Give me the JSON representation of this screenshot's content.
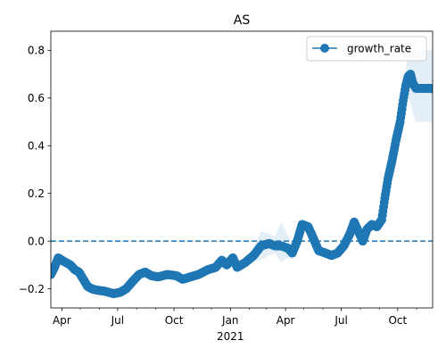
{
  "chart_data": {
    "type": "line",
    "title": "AS",
    "xlabel": "",
    "ylabel": "",
    "x_axis": {
      "range": [
        "2020-03-14",
        "2021-11-27"
      ],
      "ticks": [
        {
          "date": "2020-04-01",
          "label": "Apr"
        },
        {
          "date": "2020-07-01",
          "label": "Jul"
        },
        {
          "date": "2020-10-01",
          "label": "Oct"
        },
        {
          "date": "2021-01-01",
          "label": "Jan"
        },
        {
          "date": "2021-04-01",
          "label": "Apr"
        },
        {
          "date": "2021-07-01",
          "label": "Jul"
        },
        {
          "date": "2021-10-01",
          "label": "Oct"
        }
      ],
      "year_label": {
        "date": "2021-01-01",
        "label": "2021"
      }
    },
    "ylim": [
      -0.28,
      0.88
    ],
    "yticks": [
      -0.2,
      0.0,
      0.2,
      0.4,
      0.6,
      0.8
    ],
    "ytick_labels": [
      "−0.2",
      "0.0",
      "0.2",
      "0.4",
      "0.6",
      "0.8"
    ],
    "grid": false,
    "legend": {
      "placement": "top-right"
    },
    "reference_line": {
      "y": 0.0,
      "style": "dashed",
      "color": "#1f77b4"
    },
    "colors": {
      "series": "#1f77b4",
      "band": "#1f77b4"
    },
    "series": [
      {
        "name": "growth_rate",
        "marker": "circle",
        "points": [
          {
            "x": "2020-03-14",
            "y": -0.14,
            "lo": -0.15,
            "hi": -0.13
          },
          {
            "x": "2020-03-20",
            "y": -0.11,
            "lo": -0.12,
            "hi": -0.1
          },
          {
            "x": "2020-03-26",
            "y": -0.07,
            "lo": -0.08,
            "hi": -0.06
          },
          {
            "x": "2020-04-01",
            "y": -0.08,
            "lo": -0.09,
            "hi": -0.07
          },
          {
            "x": "2020-04-08",
            "y": -0.09,
            "lo": -0.1,
            "hi": -0.08
          },
          {
            "x": "2020-04-15",
            "y": -0.1,
            "lo": -0.11,
            "hi": -0.09
          },
          {
            "x": "2020-04-22",
            "y": -0.12,
            "lo": -0.13,
            "hi": -0.11
          },
          {
            "x": "2020-04-29",
            "y": -0.13,
            "lo": -0.14,
            "hi": -0.12
          },
          {
            "x": "2020-05-06",
            "y": -0.16,
            "lo": -0.17,
            "hi": -0.15
          },
          {
            "x": "2020-05-13",
            "y": -0.19,
            "lo": -0.2,
            "hi": -0.18
          },
          {
            "x": "2020-05-20",
            "y": -0.2,
            "lo": -0.21,
            "hi": -0.19
          },
          {
            "x": "2020-05-27",
            "y": -0.205,
            "lo": -0.215,
            "hi": -0.195
          },
          {
            "x": "2020-06-10",
            "y": -0.21,
            "lo": -0.22,
            "hi": -0.2
          },
          {
            "x": "2020-06-24",
            "y": -0.22,
            "lo": -0.23,
            "hi": -0.21
          },
          {
            "x": "2020-07-05",
            "y": -0.215,
            "lo": -0.225,
            "hi": -0.205
          },
          {
            "x": "2020-07-15",
            "y": -0.2,
            "lo": -0.21,
            "hi": -0.19
          },
          {
            "x": "2020-07-25",
            "y": -0.17,
            "lo": -0.18,
            "hi": -0.16
          },
          {
            "x": "2020-08-05",
            "y": -0.14,
            "lo": -0.15,
            "hi": -0.13
          },
          {
            "x": "2020-08-15",
            "y": -0.13,
            "lo": -0.14,
            "hi": -0.12
          },
          {
            "x": "2020-08-25",
            "y": -0.145,
            "lo": -0.155,
            "hi": -0.135
          },
          {
            "x": "2020-09-05",
            "y": -0.15,
            "lo": -0.16,
            "hi": -0.14
          },
          {
            "x": "2020-09-20",
            "y": -0.14,
            "lo": -0.15,
            "hi": -0.13
          },
          {
            "x": "2020-10-05",
            "y": -0.145,
            "lo": -0.155,
            "hi": -0.135
          },
          {
            "x": "2020-10-15",
            "y": -0.16,
            "lo": -0.17,
            "hi": -0.15
          },
          {
            "x": "2020-10-28",
            "y": -0.15,
            "lo": -0.16,
            "hi": -0.14
          },
          {
            "x": "2020-11-10",
            "y": -0.14,
            "lo": -0.15,
            "hi": -0.13
          },
          {
            "x": "2020-11-25",
            "y": -0.12,
            "lo": -0.13,
            "hi": -0.11
          },
          {
            "x": "2020-12-08",
            "y": -0.11,
            "lo": -0.12,
            "hi": -0.1
          },
          {
            "x": "2020-12-18",
            "y": -0.08,
            "lo": -0.09,
            "hi": -0.07
          },
          {
            "x": "2020-12-26",
            "y": -0.1,
            "lo": -0.11,
            "hi": -0.09
          },
          {
            "x": "2021-01-05",
            "y": -0.07,
            "lo": -0.08,
            "hi": -0.06
          },
          {
            "x": "2021-01-12",
            "y": -0.11,
            "lo": -0.12,
            "hi": -0.1
          },
          {
            "x": "2021-01-25",
            "y": -0.09,
            "lo": -0.11,
            "hi": -0.07
          },
          {
            "x": "2021-02-08",
            "y": -0.06,
            "lo": -0.09,
            "hi": -0.03
          },
          {
            "x": "2021-02-20",
            "y": -0.02,
            "lo": -0.08,
            "hi": 0.04
          },
          {
            "x": "2021-03-05",
            "y": -0.01,
            "lo": -0.06,
            "hi": 0.03
          },
          {
            "x": "2021-03-15",
            "y": -0.02,
            "lo": -0.05,
            "hi": 0.02
          },
          {
            "x": "2021-03-25",
            "y": -0.02,
            "lo": -0.09,
            "hi": 0.08
          },
          {
            "x": "2021-04-05",
            "y": -0.03,
            "lo": -0.07,
            "hi": 0.02
          },
          {
            "x": "2021-04-12",
            "y": -0.05,
            "lo": -0.08,
            "hi": -0.02
          },
          {
            "x": "2021-04-20",
            "y": 0.0,
            "lo": -0.03,
            "hi": 0.03
          },
          {
            "x": "2021-04-28",
            "y": 0.07,
            "lo": 0.05,
            "hi": 0.09
          },
          {
            "x": "2021-05-08",
            "y": 0.06,
            "lo": 0.04,
            "hi": 0.08
          },
          {
            "x": "2021-05-15",
            "y": 0.02,
            "lo": 0.0,
            "hi": 0.04
          },
          {
            "x": "2021-05-25",
            "y": -0.04,
            "lo": -0.05,
            "hi": -0.03
          },
          {
            "x": "2021-06-05",
            "y": -0.05,
            "lo": -0.06,
            "hi": -0.04
          },
          {
            "x": "2021-06-15",
            "y": -0.06,
            "lo": -0.07,
            "hi": -0.05
          },
          {
            "x": "2021-06-25",
            "y": -0.05,
            "lo": -0.06,
            "hi": -0.04
          },
          {
            "x": "2021-07-05",
            "y": -0.02,
            "lo": -0.03,
            "hi": -0.01
          },
          {
            "x": "2021-07-15",
            "y": 0.03,
            "lo": 0.02,
            "hi": 0.04
          },
          {
            "x": "2021-07-22",
            "y": 0.08,
            "lo": 0.07,
            "hi": 0.09
          },
          {
            "x": "2021-07-29",
            "y": 0.04,
            "lo": 0.03,
            "hi": 0.05
          },
          {
            "x": "2021-08-05",
            "y": 0.0,
            "lo": -0.01,
            "hi": 0.01
          },
          {
            "x": "2021-08-12",
            "y": 0.05,
            "lo": 0.04,
            "hi": 0.06
          },
          {
            "x": "2021-08-20",
            "y": 0.07,
            "lo": 0.06,
            "hi": 0.08
          },
          {
            "x": "2021-08-28",
            "y": 0.06,
            "lo": 0.05,
            "hi": 0.07
          },
          {
            "x": "2021-09-05",
            "y": 0.09,
            "lo": 0.08,
            "hi": 0.1
          },
          {
            "x": "2021-09-10",
            "y": 0.18,
            "lo": 0.17,
            "hi": 0.19
          },
          {
            "x": "2021-09-15",
            "y": 0.26,
            "lo": 0.25,
            "hi": 0.27
          },
          {
            "x": "2021-09-22",
            "y": 0.34,
            "lo": 0.33,
            "hi": 0.35
          },
          {
            "x": "2021-09-28",
            "y": 0.42,
            "lo": 0.41,
            "hi": 0.43
          },
          {
            "x": "2021-10-05",
            "y": 0.5,
            "lo": 0.48,
            "hi": 0.52
          },
          {
            "x": "2021-10-10",
            "y": 0.59,
            "lo": 0.55,
            "hi": 0.63
          },
          {
            "x": "2021-10-14",
            "y": 0.65,
            "lo": 0.58,
            "hi": 0.72
          },
          {
            "x": "2021-10-18",
            "y": 0.69,
            "lo": 0.6,
            "hi": 0.78
          },
          {
            "x": "2021-10-22",
            "y": 0.7,
            "lo": 0.58,
            "hi": 0.8
          },
          {
            "x": "2021-10-26",
            "y": 0.66,
            "lo": 0.53,
            "hi": 0.8
          },
          {
            "x": "2021-10-31",
            "y": 0.64,
            "lo": 0.5,
            "hi": 0.8
          },
          {
            "x": "2021-11-10",
            "y": 0.64,
            "lo": 0.5,
            "hi": 0.8
          },
          {
            "x": "2021-11-20",
            "y": 0.64,
            "lo": 0.5,
            "hi": 0.8
          },
          {
            "x": "2021-11-27",
            "y": 0.64,
            "lo": 0.5,
            "hi": 0.8
          }
        ]
      }
    ]
  }
}
